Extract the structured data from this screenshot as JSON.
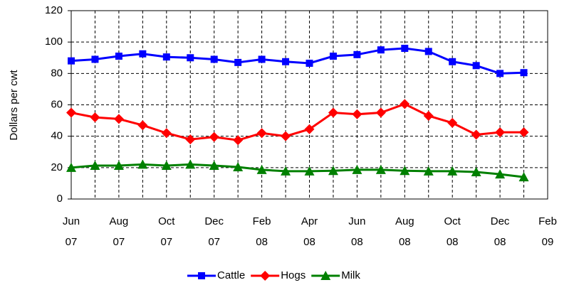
{
  "chart_data": {
    "type": "line",
    "y_label": "Dollars per cwt",
    "categories": [
      "Jun 07",
      null,
      "Aug 07",
      null,
      "Oct 07",
      null,
      "Dec 07",
      null,
      "Feb 08",
      null,
      "Apr 08",
      null,
      "Jun 08",
      null,
      "Aug 08",
      null,
      "Oct 08",
      null,
      "Dec 08",
      null,
      "Feb 09"
    ],
    "series": [
      {
        "name": "Cattle",
        "color": "#0000ff",
        "marker": "square",
        "values": [
          88,
          89,
          91,
          92.5,
          90.5,
          90,
          89,
          87,
          89,
          87.5,
          86.5,
          91,
          92,
          95,
          96,
          94,
          87.5,
          85,
          80,
          80.5,
          null
        ]
      },
      {
        "name": "Hogs",
        "color": "#ff0000",
        "marker": "diamond",
        "values": [
          55,
          52,
          51,
          47,
          42,
          38,
          39.5,
          37.5,
          42,
          40,
          44.5,
          55,
          54,
          55,
          60.5,
          53,
          48.5,
          41,
          42.5,
          42.5,
          null
        ]
      },
      {
        "name": "Milk",
        "color": "#008000",
        "marker": "triangle",
        "values": [
          20,
          21.3,
          21.3,
          22,
          21.3,
          22,
          21.3,
          20.4,
          18.6,
          17.7,
          17.7,
          18,
          18.6,
          18.6,
          18,
          17.7,
          17.7,
          17.2,
          15.8,
          14,
          null
        ]
      }
    ],
    "ylim": [
      0,
      120
    ],
    "yticks": [
      0,
      20,
      40,
      60,
      80,
      100,
      120
    ],
    "grid": true,
    "legend": "bottom"
  }
}
